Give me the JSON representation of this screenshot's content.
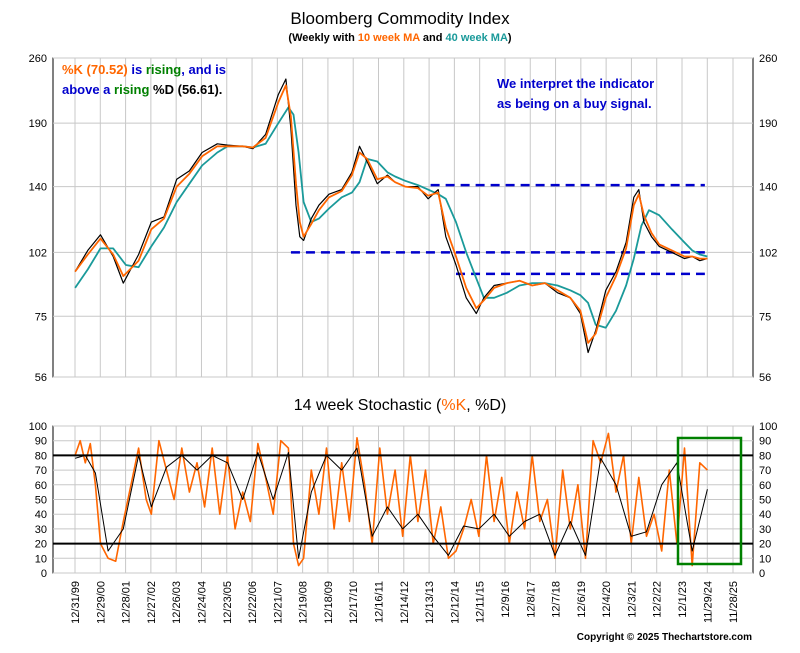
{
  "header": {
    "title": "Bloomberg Commodity Index",
    "subtitle": {
      "open": "(Weekly with ",
      "ma10": "10 week MA",
      "and": " and ",
      "ma40": "40 week MA",
      "close": ")"
    }
  },
  "annotations": {
    "left": {
      "k_label": "%K (70.52)",
      "is": " is ",
      "rising1": "rising",
      "and_is": ", and is",
      "above_a": "above a ",
      "rising2": "rising",
      "d_label": " %D (56.61)."
    },
    "right": {
      "line1": "We interpret the indicator",
      "line2": "as being on a buy signal."
    }
  },
  "stochastic_title": {
    "open": "14 week Stochastic (",
    "k": "%K",
    "sep": ", ",
    "d": "%D",
    "close": ")"
  },
  "copyright": "Copyright © 2025 Thechartstore.com",
  "colors": {
    "price": "#000000",
    "ma10": "#ff6600",
    "ma40": "#1a9a9a",
    "k_line": "#ff6600",
    "d_line": "#000000",
    "dashed_lines": "#0000cc",
    "annotation_blue": "#0000cc",
    "annotation_green": "#008000",
    "highlight_box": "#008000",
    "grid": "#c8c8c8"
  },
  "chart_data": [
    {
      "type": "line",
      "title": "Bloomberg Commodity Index",
      "yscale": "log",
      "ylim": [
        56,
        260
      ],
      "yticks": [
        56,
        75,
        102,
        140,
        190,
        260
      ],
      "grid": true,
      "xlim": [
        1999.996,
        2025.908
      ],
      "horizontal_levels": [
        141,
        102,
        92
      ],
      "series": [
        {
          "name": "Index (weekly)",
          "x": [
            2000.0,
            2000.5,
            2001.0,
            2001.5,
            2001.9,
            2002.5,
            2003.0,
            2003.5,
            2004.0,
            2004.5,
            2005.0,
            2005.6,
            2006.0,
            2006.6,
            2007.0,
            2007.5,
            2008.0,
            2008.3,
            2008.5,
            2008.7,
            2008.85,
            2009.0,
            2009.3,
            2009.6,
            2010.0,
            2010.5,
            2010.9,
            2011.2,
            2011.5,
            2011.9,
            2012.3,
            2012.6,
            2013.0,
            2013.5,
            2013.9,
            2014.3,
            2014.6,
            2015.0,
            2015.4,
            2015.8,
            2016.1,
            2016.5,
            2017.0,
            2017.5,
            2018.0,
            2018.5,
            2019.0,
            2019.5,
            2019.9,
            2020.2,
            2020.5,
            2020.9,
            2021.3,
            2021.7,
            2022.0,
            2022.2,
            2022.4,
            2022.7,
            2023.0,
            2023.5,
            2024.0,
            2024.3,
            2024.6,
            2024.9
          ],
          "values": [
            93,
            103,
            111,
            100,
            88,
            101,
            118,
            121,
            145,
            151,
            165,
            172,
            171,
            170,
            168,
            180,
            218,
            235,
            185,
            128,
            110,
            108,
            120,
            128,
            135,
            138,
            150,
            170,
            158,
            142,
            148,
            143,
            140,
            140,
            132,
            138,
            110,
            96,
            82,
            76,
            82,
            87,
            88,
            89,
            87,
            88,
            84,
            82,
            76,
            63,
            70,
            85,
            93,
            107,
            133,
            138,
            118,
            110,
            105,
            102,
            99,
            100,
            98,
            99
          ]
        },
        {
          "name": "10 week MA",
          "x": [
            2000.0,
            2000.5,
            2001.0,
            2001.5,
            2001.9,
            2002.5,
            2003.0,
            2003.5,
            2004.0,
            2004.5,
            2005.0,
            2005.6,
            2006.0,
            2006.6,
            2007.0,
            2007.5,
            2008.0,
            2008.3,
            2008.5,
            2008.7,
            2008.85,
            2009.0,
            2009.3,
            2009.6,
            2010.0,
            2010.5,
            2010.9,
            2011.2,
            2011.5,
            2011.9,
            2012.3,
            2012.6,
            2013.0,
            2013.5,
            2013.9,
            2014.3,
            2014.6,
            2015.0,
            2015.4,
            2015.8,
            2016.1,
            2016.5,
            2017.0,
            2017.5,
            2018.0,
            2018.5,
            2019.0,
            2019.5,
            2019.9,
            2020.2,
            2020.5,
            2020.9,
            2021.3,
            2021.7,
            2022.0,
            2022.2,
            2022.4,
            2022.7,
            2023.0,
            2023.5,
            2024.0,
            2024.3,
            2024.6,
            2024.9
          ],
          "values": [
            93,
            101,
            109,
            101,
            91,
            98,
            114,
            120,
            140,
            149,
            162,
            170,
            170,
            170,
            169,
            177,
            210,
            228,
            196,
            142,
            118,
            110,
            117,
            125,
            133,
            137,
            148,
            165,
            160,
            145,
            147,
            143,
            140,
            139,
            134,
            136,
            115,
            100,
            86,
            78,
            81,
            86,
            88,
            89,
            87,
            88,
            85,
            82,
            77,
            66,
            69,
            82,
            91,
            104,
            128,
            135,
            122,
            112,
            106,
            103,
            100,
            100,
            99,
            99
          ]
        },
        {
          "name": "40 week MA",
          "x": [
            2000.0,
            2000.5,
            2001.0,
            2001.5,
            2002.0,
            2002.5,
            2003.0,
            2003.5,
            2004.0,
            2004.5,
            2005.0,
            2005.6,
            2006.0,
            2006.6,
            2007.0,
            2007.5,
            2008.0,
            2008.4,
            2008.6,
            2008.8,
            2009.0,
            2009.3,
            2009.6,
            2010.0,
            2010.5,
            2010.9,
            2011.2,
            2011.5,
            2011.9,
            2012.3,
            2012.6,
            2013.0,
            2013.5,
            2013.9,
            2014.3,
            2014.6,
            2015.0,
            2015.4,
            2015.8,
            2016.1,
            2016.5,
            2017.0,
            2017.5,
            2018.0,
            2018.5,
            2019.0,
            2019.5,
            2019.9,
            2020.2,
            2020.5,
            2020.9,
            2021.3,
            2021.7,
            2022.0,
            2022.3,
            2022.6,
            2023.0,
            2023.5,
            2024.0,
            2024.3,
            2024.6,
            2024.9
          ],
          "values": [
            86,
            94,
            104,
            104,
            96,
            95,
            105,
            115,
            130,
            142,
            155,
            165,
            170,
            170,
            169,
            172,
            190,
            205,
            198,
            165,
            130,
            118,
            120,
            126,
            133,
            136,
            143,
            160,
            158,
            150,
            147,
            144,
            141,
            138,
            135,
            132,
            118,
            102,
            90,
            82,
            82,
            84,
            87,
            88,
            88,
            87,
            85,
            83,
            80,
            72,
            71,
            77,
            87,
            99,
            116,
            125,
            122,
            114,
            107,
            103,
            101,
            100
          ]
        }
      ]
    },
    {
      "type": "line",
      "title": "14 week Stochastic",
      "ylim": [
        0,
        100
      ],
      "yticks": [
        0,
        10,
        20,
        30,
        40,
        50,
        60,
        70,
        80,
        90,
        100
      ],
      "horizontal_levels": [
        80,
        20
      ],
      "xlim": [
        1999.996,
        2025.908
      ],
      "series": [
        {
          "name": "%K",
          "x": [
            2000.0,
            2000.2,
            2000.4,
            2000.6,
            2000.8,
            2001.0,
            2001.3,
            2001.6,
            2001.9,
            2002.2,
            2002.5,
            2002.8,
            2003.0,
            2003.3,
            2003.6,
            2003.9,
            2004.2,
            2004.5,
            2004.8,
            2005.1,
            2005.4,
            2005.7,
            2006.0,
            2006.3,
            2006.6,
            2006.9,
            2007.2,
            2007.5,
            2007.8,
            2008.1,
            2008.4,
            2008.6,
            2008.8,
            2009.0,
            2009.3,
            2009.6,
            2009.9,
            2010.2,
            2010.5,
            2010.8,
            2011.1,
            2011.4,
            2011.7,
            2012.0,
            2012.3,
            2012.6,
            2012.9,
            2013.2,
            2013.5,
            2013.8,
            2014.1,
            2014.4,
            2014.7,
            2015.0,
            2015.3,
            2015.6,
            2015.9,
            2016.2,
            2016.5,
            2016.8,
            2017.1,
            2017.4,
            2017.7,
            2018.0,
            2018.3,
            2018.6,
            2018.9,
            2019.2,
            2019.5,
            2019.8,
            2020.1,
            2020.4,
            2020.7,
            2021.0,
            2021.3,
            2021.6,
            2021.9,
            2022.2,
            2022.5,
            2022.8,
            2023.1,
            2023.4,
            2023.7,
            2024.0,
            2024.3,
            2024.6,
            2024.9
          ],
          "values": [
            80,
            90,
            75,
            88,
            60,
            20,
            10,
            8,
            35,
            60,
            85,
            50,
            40,
            90,
            70,
            50,
            85,
            55,
            75,
            45,
            85,
            40,
            80,
            30,
            55,
            35,
            88,
            65,
            40,
            90,
            85,
            20,
            5,
            10,
            70,
            40,
            85,
            30,
            75,
            35,
            92,
            60,
            20,
            85,
            40,
            70,
            25,
            80,
            35,
            70,
            20,
            45,
            10,
            15,
            30,
            50,
            25,
            80,
            35,
            65,
            20,
            55,
            30,
            80,
            35,
            50,
            10,
            70,
            30,
            60,
            10,
            90,
            75,
            95,
            55,
            80,
            20,
            65,
            25,
            40,
            15,
            70,
            20,
            85,
            5,
            75,
            70
          ]
        },
        {
          "name": "%D",
          "x": [
            2000.0,
            2000.4,
            2000.8,
            2001.3,
            2001.9,
            2002.5,
            2003.0,
            2003.6,
            2004.2,
            2004.8,
            2005.4,
            2006.0,
            2006.6,
            2007.2,
            2007.8,
            2008.4,
            2008.8,
            2009.3,
            2009.9,
            2010.5,
            2011.1,
            2011.7,
            2012.3,
            2012.9,
            2013.5,
            2014.1,
            2014.7,
            2015.3,
            2015.9,
            2016.5,
            2017.1,
            2017.7,
            2018.3,
            2018.9,
            2019.5,
            2020.1,
            2020.7,
            2021.3,
            2021.9,
            2022.5,
            2023.1,
            2023.7,
            2024.3,
            2024.9
          ],
          "values": [
            78,
            80,
            68,
            15,
            30,
            80,
            45,
            72,
            80,
            70,
            80,
            75,
            50,
            82,
            50,
            82,
            10,
            55,
            80,
            70,
            85,
            25,
            45,
            30,
            40,
            25,
            12,
            32,
            30,
            40,
            25,
            35,
            40,
            12,
            35,
            12,
            78,
            60,
            25,
            28,
            60,
            75,
            15,
            57
          ]
        }
      ]
    }
  ],
  "x_axis": {
    "tick_labels": [
      "12/31/99",
      "12/29/00",
      "12/28/01",
      "12/27/02",
      "12/26/03",
      "12/24/04",
      "12/23/05",
      "12/22/06",
      "12/21/07",
      "12/19/08",
      "12/18/09",
      "12/17/10",
      "12/16/11",
      "12/14/12",
      "12/13/13",
      "12/12/14",
      "12/11/15",
      "12/9/16",
      "12/8/17",
      "12/7/18",
      "12/6/19",
      "12/4/20",
      "12/3/21",
      "12/2/22",
      "12/1/23",
      "11/29/24",
      "11/28/25"
    ],
    "tick_values": [
      1999.996,
      2000.992,
      2001.988,
      2002.984,
      2003.98,
      2004.976,
      2005.972,
      2006.968,
      2007.964,
      2008.96,
      2009.956,
      2010.952,
      2011.948,
      2012.944,
      2013.94,
      2014.936,
      2015.932,
      2016.928,
      2017.924,
      2018.92,
      2019.916,
      2020.912,
      2021.908,
      2022.904,
      2023.9,
      2024.896,
      2025.908
    ]
  }
}
